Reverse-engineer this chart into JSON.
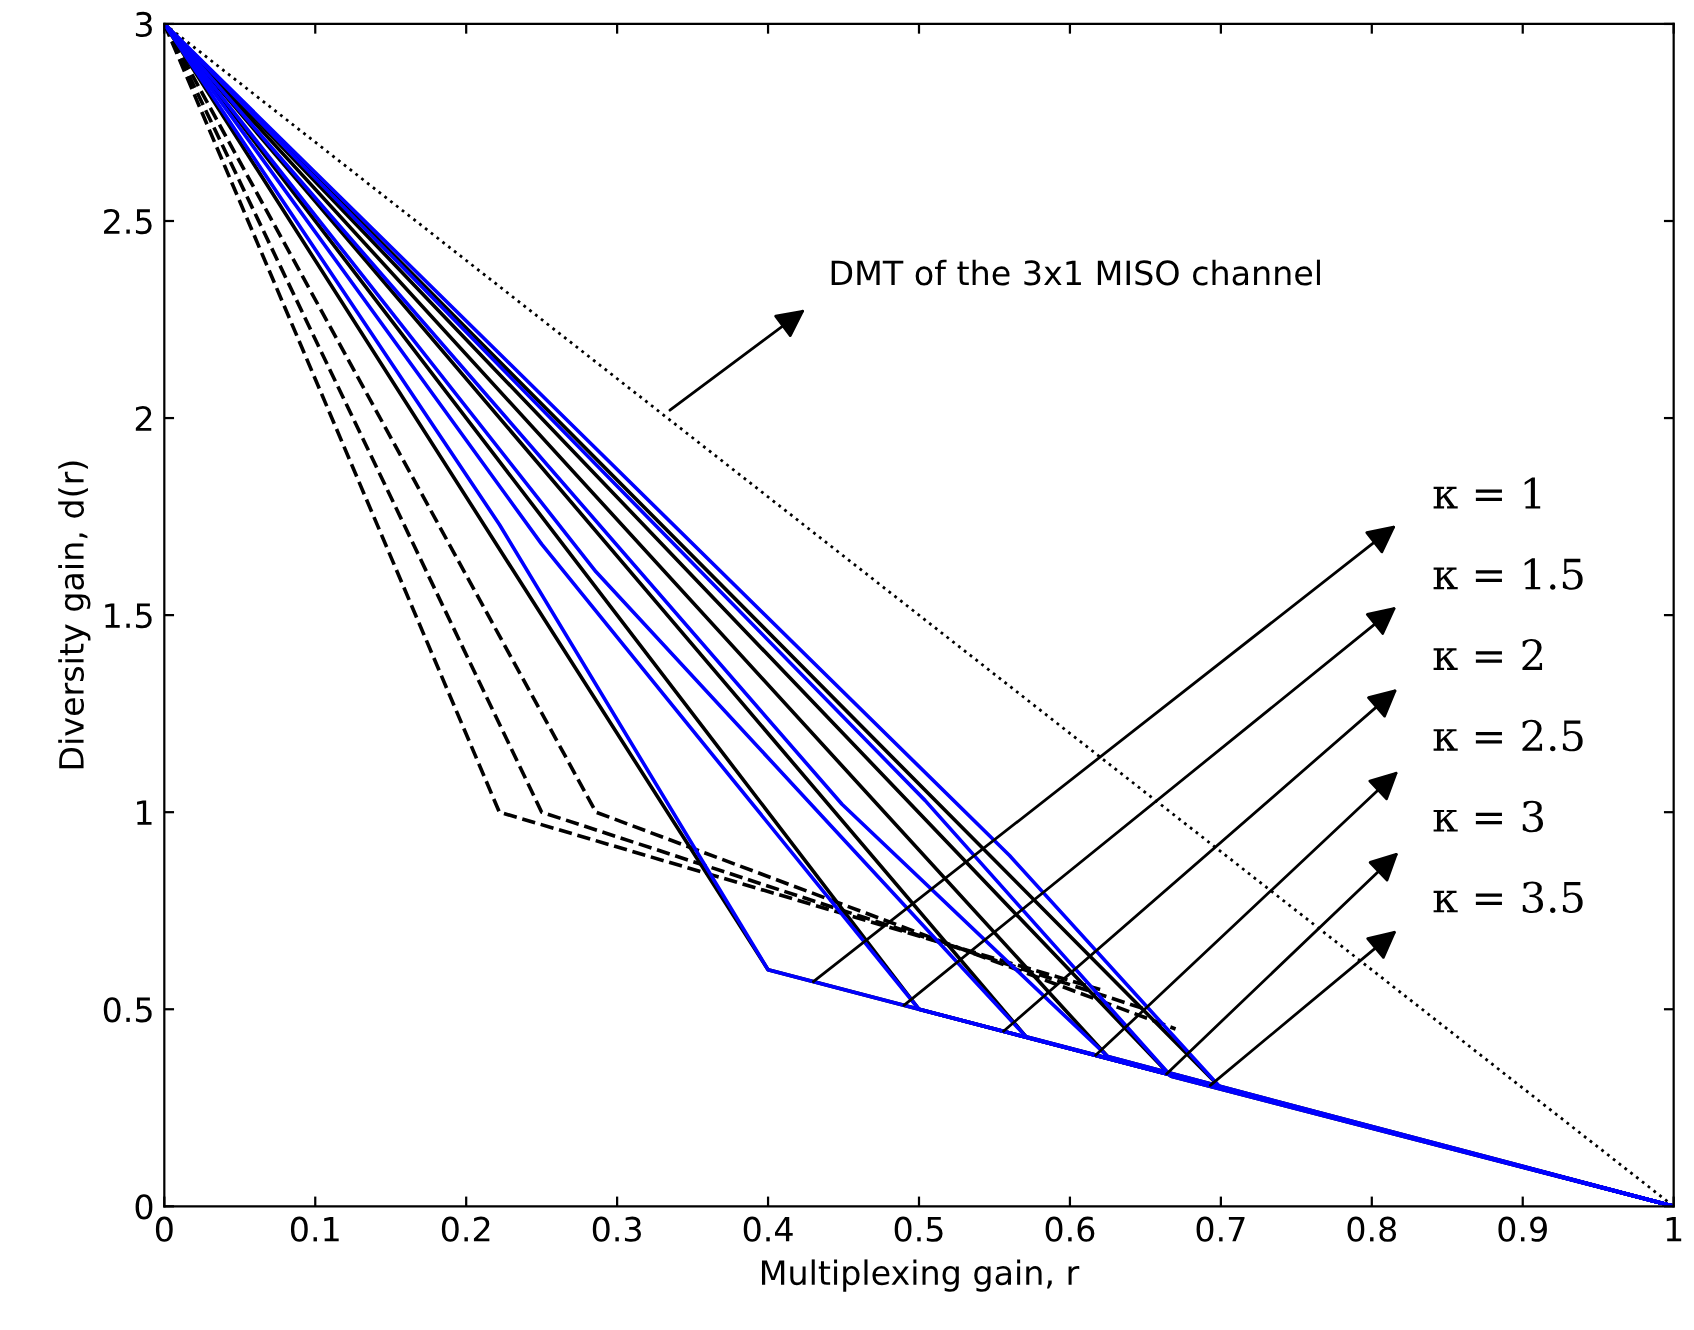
{
  "chart_data": {
    "type": "line",
    "xlabel": "Multiplexing gain, r",
    "ylabel": "Diversity gain, d(r)",
    "xlim": [
      0,
      1
    ],
    "ylim": [
      0,
      3
    ],
    "xticks": [
      0,
      0.1,
      0.2,
      0.3,
      0.4,
      0.5,
      0.6,
      0.7,
      0.8,
      0.9,
      1
    ],
    "yticks": [
      0,
      0.5,
      1,
      1.5,
      2,
      2.5,
      3
    ],
    "grid": false,
    "marker": "none",
    "series": [
      {
        "color": "#000000",
        "line_style": "dotted",
        "x": [
          0,
          1
        ],
        "values": [
          3,
          0
        ]
      },
      {
        "color": "#000000",
        "line_style": "dashed",
        "x": [
          0,
          0.222,
          0.62
        ],
        "values": [
          3,
          1.0,
          0.55
        ]
      },
      {
        "color": "#000000",
        "line_style": "dashed",
        "x": [
          0,
          0.25,
          0.65
        ],
        "values": [
          3,
          1.0,
          0.5
        ]
      },
      {
        "color": "#000000",
        "line_style": "dashed",
        "x": [
          0,
          0.286,
          0.67
        ],
        "values": [
          3,
          1.0,
          0.45
        ]
      },
      {
        "color": "#000000",
        "line_style": "solid",
        "x": [
          0,
          0.4,
          1
        ],
        "values": [
          3,
          0.6,
          0
        ]
      },
      {
        "color": "#000000",
        "line_style": "solid",
        "x": [
          0,
          0.5,
          1
        ],
        "values": [
          3,
          0.5,
          0
        ]
      },
      {
        "color": "#000000",
        "line_style": "solid",
        "x": [
          0,
          0.571,
          1
        ],
        "values": [
          3,
          0.43,
          0
        ]
      },
      {
        "color": "#000000",
        "line_style": "solid",
        "x": [
          0,
          0.625,
          1
        ],
        "values": [
          3,
          0.38,
          0
        ]
      },
      {
        "color": "#000000",
        "line_style": "solid",
        "x": [
          0,
          0.667,
          1
        ],
        "values": [
          3,
          0.33,
          0
        ]
      },
      {
        "color": "#000000",
        "line_style": "solid",
        "x": [
          0,
          0.7,
          1
        ],
        "values": [
          3,
          0.3,
          0
        ]
      },
      {
        "color": "#0000ff",
        "line_style": "solid",
        "x": [
          0,
          0.222,
          0.4,
          1
        ],
        "values": [
          3,
          1.73,
          0.6,
          0
        ]
      },
      {
        "color": "#0000ff",
        "line_style": "solid",
        "x": [
          0,
          0.25,
          0.5,
          1
        ],
        "values": [
          3,
          1.68,
          0.5,
          0
        ]
      },
      {
        "color": "#0000ff",
        "line_style": "solid",
        "x": [
          0,
          0.286,
          0.571,
          1
        ],
        "values": [
          3,
          1.61,
          0.43,
          0
        ]
      },
      {
        "color": "#0000ff",
        "line_style": "solid",
        "x": [
          0,
          0.449,
          0.625,
          1
        ],
        "values": [
          3,
          1.02,
          0.38,
          0
        ]
      },
      {
        "color": "#0000ff",
        "line_style": "solid",
        "x": [
          0,
          0.504,
          0.667,
          1
        ],
        "values": [
          3,
          1.03,
          0.33,
          0
        ]
      },
      {
        "color": "#0000ff",
        "line_style": "solid",
        "x": [
          0,
          0.56,
          0.7,
          1
        ],
        "values": [
          3,
          0.89,
          0.3,
          0
        ]
      }
    ],
    "annotations": [
      {
        "text": "DMT of the 3x1 MISO channel",
        "x": 0.335,
        "y": 2.02
      },
      {
        "text": "κ = 1",
        "x": 0.43,
        "y": 0.57
      },
      {
        "text": "κ = 1.5",
        "x": 0.49,
        "y": 0.51
      },
      {
        "text": "κ = 2",
        "x": 0.556,
        "y": 0.444
      },
      {
        "text": "κ = 2.5",
        "x": 0.617,
        "y": 0.383
      },
      {
        "text": "κ = 3",
        "x": 0.664,
        "y": 0.336
      },
      {
        "text": "κ = 3.5",
        "x": 0.693,
        "y": 0.307
      }
    ]
  }
}
